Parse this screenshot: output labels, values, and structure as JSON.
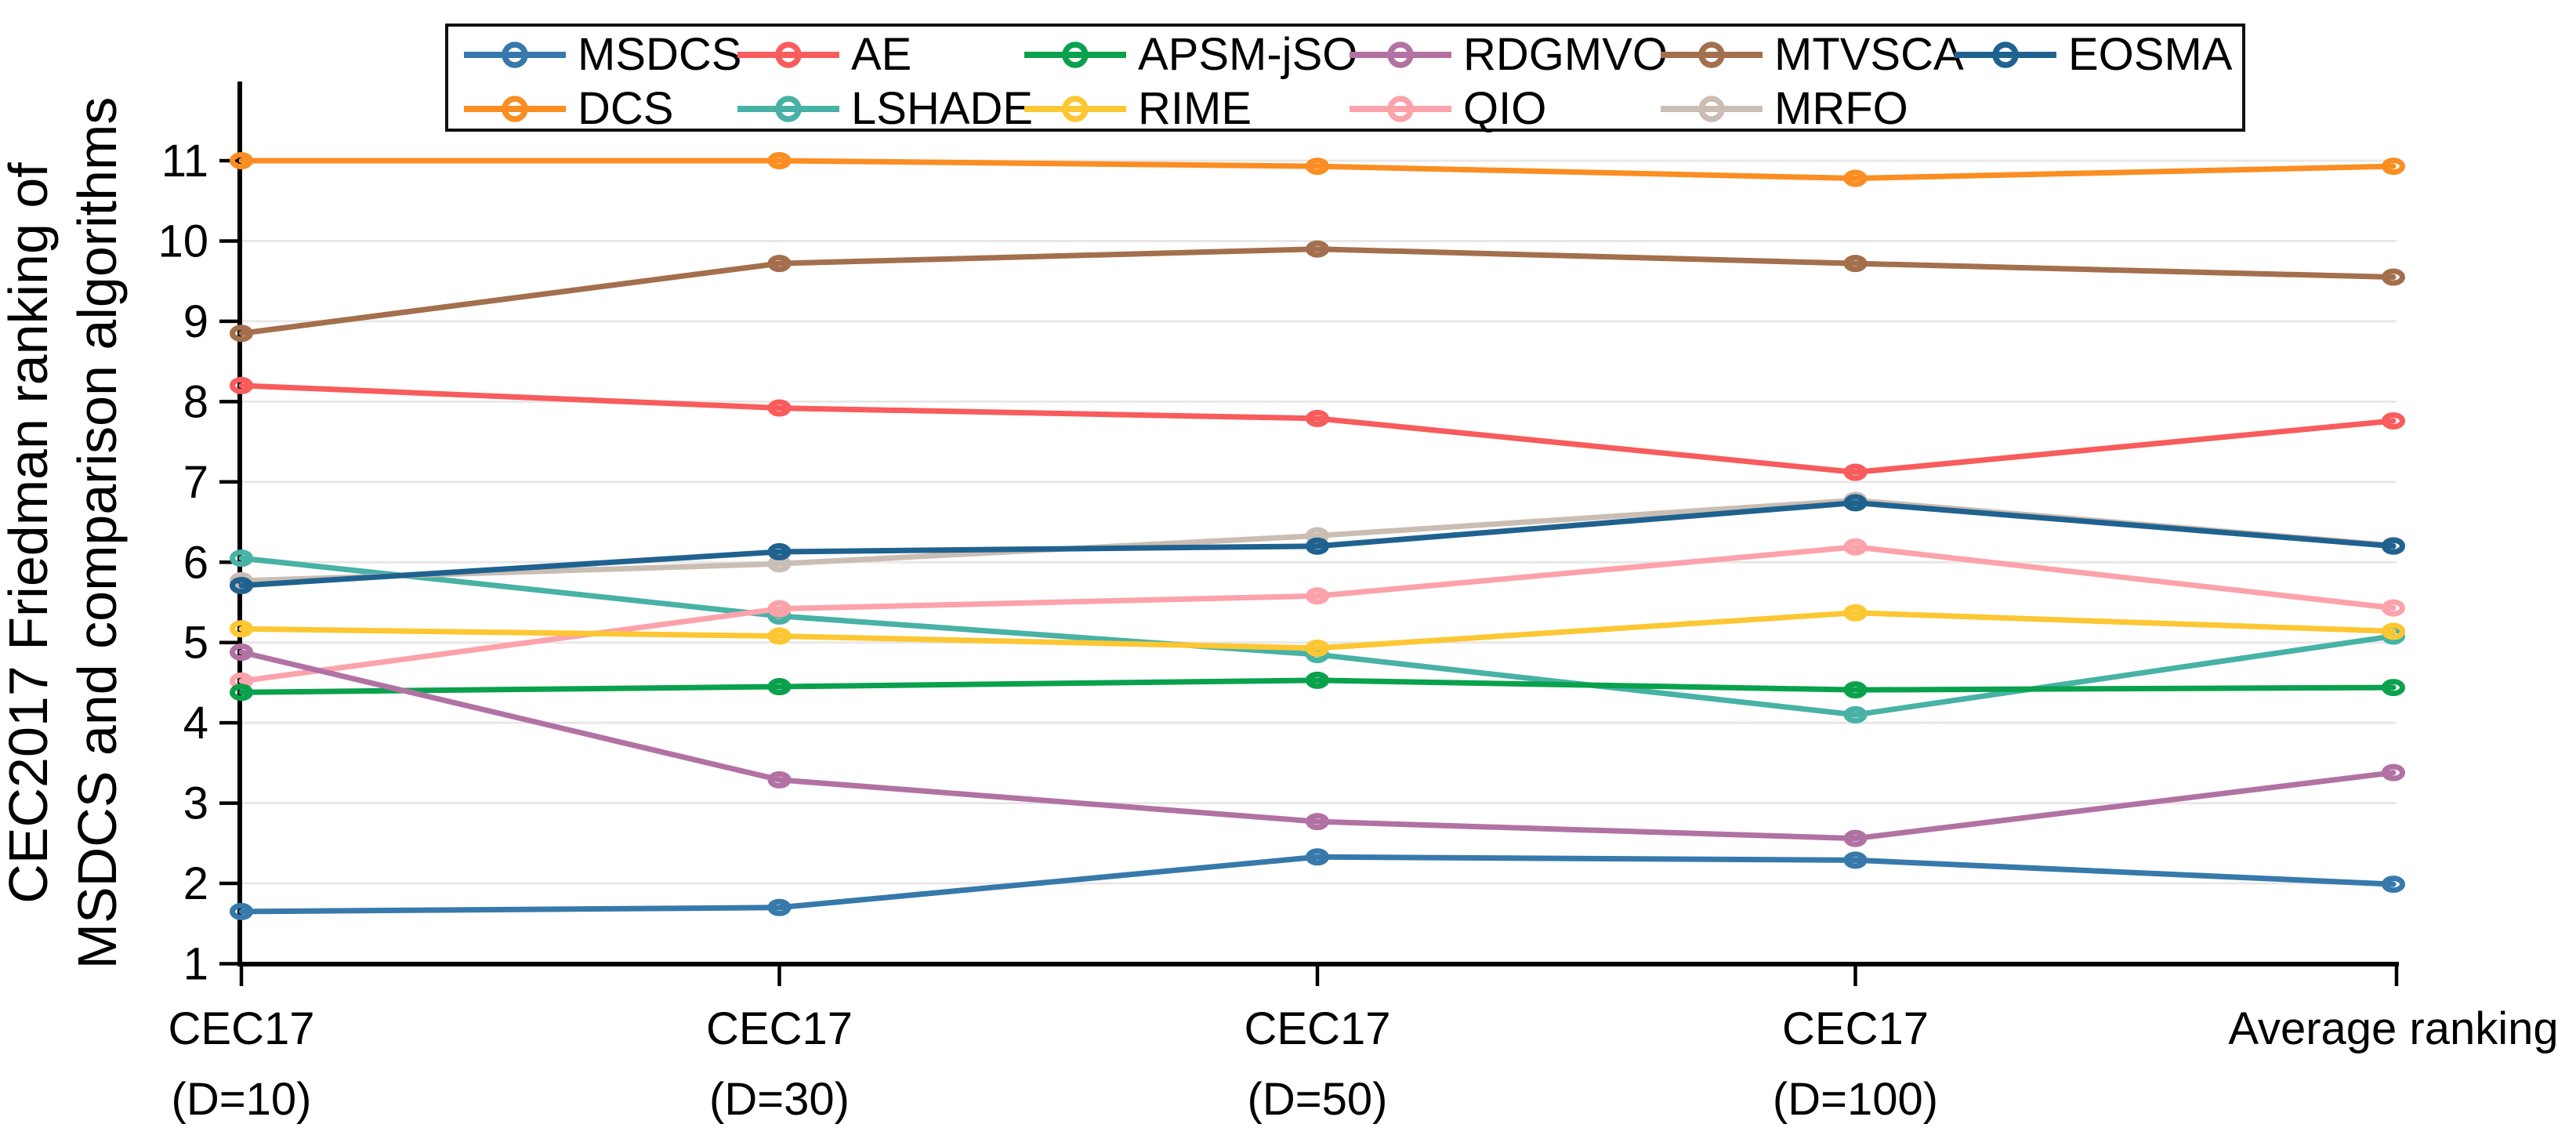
{
  "figure": {
    "background": "#ffffff",
    "y_axis": {
      "label_lines": [
        "CEC2017 Friedman ranking of",
        "MSDCS and comparison algorithms"
      ],
      "ticks": [
        1,
        2,
        3,
        4,
        5,
        6,
        7,
        8,
        9,
        10,
        11
      ],
      "min": 1,
      "max": 11
    },
    "x_axis": {
      "tick_labels": [
        [
          "CEC17",
          "(D=10)"
        ],
        [
          "CEC17",
          "(D=30)"
        ],
        [
          "CEC17",
          "(D=50)"
        ],
        [
          "CEC17",
          "(D=100)"
        ],
        [
          "Average ranking"
        ]
      ]
    }
  },
  "legend": {
    "rows": [
      [
        "MSDCS",
        "AE",
        "APSM-jSO",
        "RDGMVO",
        "MTVSCA",
        "EOSMA"
      ],
      [
        "DCS",
        "LSHADE",
        "RIME",
        "QIO",
        "MRFO"
      ]
    ]
  },
  "chart_data": {
    "type": "line",
    "categories": [
      "CEC17 (D=10)",
      "CEC17 (D=30)",
      "CEC17 (D=50)",
      "CEC17 (D=100)",
      "Average ranking"
    ],
    "ylabel": "CEC2017 Friedman ranking of MSDCS and comparison algorithms",
    "xlabel": "",
    "ylim": [
      1,
      11
    ],
    "grid": "horizontal",
    "legend_position": "top",
    "marker": "open-circle",
    "series": [
      {
        "name": "MSDCS",
        "color": "#3779ab",
        "values": [
          1.65,
          1.7,
          2.33,
          2.29,
          1.99
        ]
      },
      {
        "name": "DCS",
        "color": "#fa8e22",
        "values": [
          11.0,
          11.0,
          10.93,
          10.78,
          10.93
        ]
      },
      {
        "name": "AE",
        "color": "#f85c5c",
        "values": [
          8.2,
          7.92,
          7.79,
          7.12,
          7.76
        ]
      },
      {
        "name": "LSHADE",
        "color": "#47b2a5",
        "values": [
          6.05,
          5.33,
          4.85,
          4.1,
          5.08
        ]
      },
      {
        "name": "QIO",
        "color": "#fca2ab",
        "values": [
          4.52,
          5.42,
          5.58,
          6.19,
          5.43
        ]
      },
      {
        "name": "APSM-jSO",
        "color": "#0aa14d",
        "values": [
          4.38,
          4.45,
          4.53,
          4.41,
          4.44
        ]
      },
      {
        "name": "RIME",
        "color": "#fcc733",
        "values": [
          5.17,
          5.08,
          4.93,
          5.37,
          5.14
        ]
      },
      {
        "name": "RDGMVO",
        "color": "#b172a3",
        "values": [
          4.88,
          3.29,
          2.77,
          2.56,
          3.38
        ]
      },
      {
        "name": "MTVSCA",
        "color": "#a36f4d",
        "values": [
          8.85,
          9.72,
          9.9,
          9.72,
          9.55
        ]
      },
      {
        "name": "MRFO",
        "color": "#cabdb3",
        "values": [
          5.77,
          5.98,
          6.33,
          6.77,
          6.21
        ]
      },
      {
        "name": "EOSMA",
        "color": "#20628f",
        "values": [
          5.71,
          6.13,
          6.2,
          6.74,
          6.2
        ]
      }
    ],
    "draw_order": [
      "MSDCS",
      "DCS",
      "AE",
      "LSHADE",
      "QIO",
      "APSM-jSO",
      "RIME",
      "RDGMVO",
      "MTVSCA",
      "MRFO",
      "EOSMA"
    ]
  },
  "colors": {
    "axis": "#000000",
    "grid": "#e8e8e8",
    "legend_border": "#111111",
    "text": "#000000"
  }
}
